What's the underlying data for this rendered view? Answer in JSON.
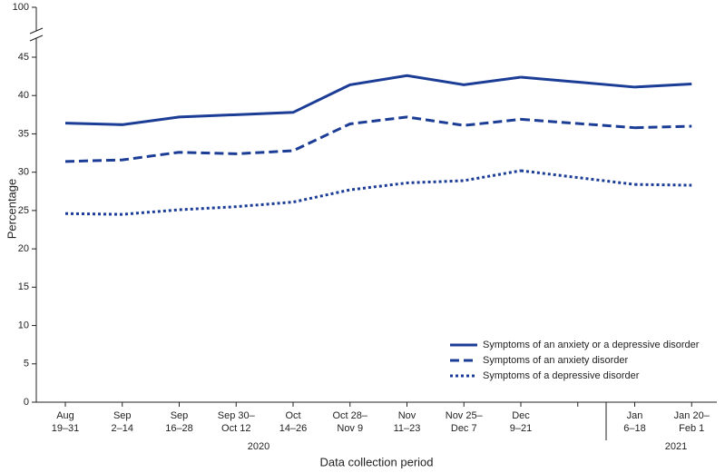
{
  "chart_data": {
    "type": "line",
    "x_label": "Data collection period",
    "y_label": "Percentage",
    "categories": [
      [
        "Aug",
        "19–31"
      ],
      [
        "Sep",
        "2–14"
      ],
      [
        "Sep",
        "16–28"
      ],
      [
        "Sep 30–",
        "Oct 12"
      ],
      [
        "Oct",
        "14–26"
      ],
      [
        "Oct 28–",
        "Nov 9"
      ],
      [
        "Nov",
        "11–23"
      ],
      [
        "Nov 25–",
        "Dec 7"
      ],
      [
        "Dec",
        "9–21"
      ],
      null,
      [
        "Jan",
        "6–18"
      ],
      [
        "Jan 20–",
        "Feb 1"
      ]
    ],
    "x_groups": [
      "2020",
      "2021"
    ],
    "series": [
      {
        "name": "Symptoms of an anxiety or a depressive disorder",
        "color": "#1c3d96",
        "dash": "solid",
        "values": [
          36.4,
          36.2,
          37.2,
          37.5,
          37.8,
          41.4,
          42.6,
          41.4,
          42.4,
          null,
          41.1,
          41.5
        ]
      },
      {
        "name": "Symptoms of an anxiety disorder",
        "color": "#1c3d96",
        "dash": "dashed",
        "values": [
          31.4,
          31.6,
          32.6,
          32.4,
          32.8,
          36.3,
          37.2,
          36.1,
          36.9,
          null,
          35.8,
          36.0
        ]
      },
      {
        "name": "Symptoms of a depressive disorder",
        "color": "#1c3d96",
        "dash": "dotted",
        "values": [
          24.6,
          24.5,
          25.1,
          25.5,
          26.1,
          27.7,
          28.6,
          28.9,
          30.2,
          null,
          28.4,
          28.3
        ]
      }
    ],
    "ylim": [
      0,
      45
    ],
    "yticks": [
      0,
      5,
      10,
      15,
      20,
      25,
      30,
      35,
      40,
      45
    ],
    "y_break_tick": 100
  }
}
